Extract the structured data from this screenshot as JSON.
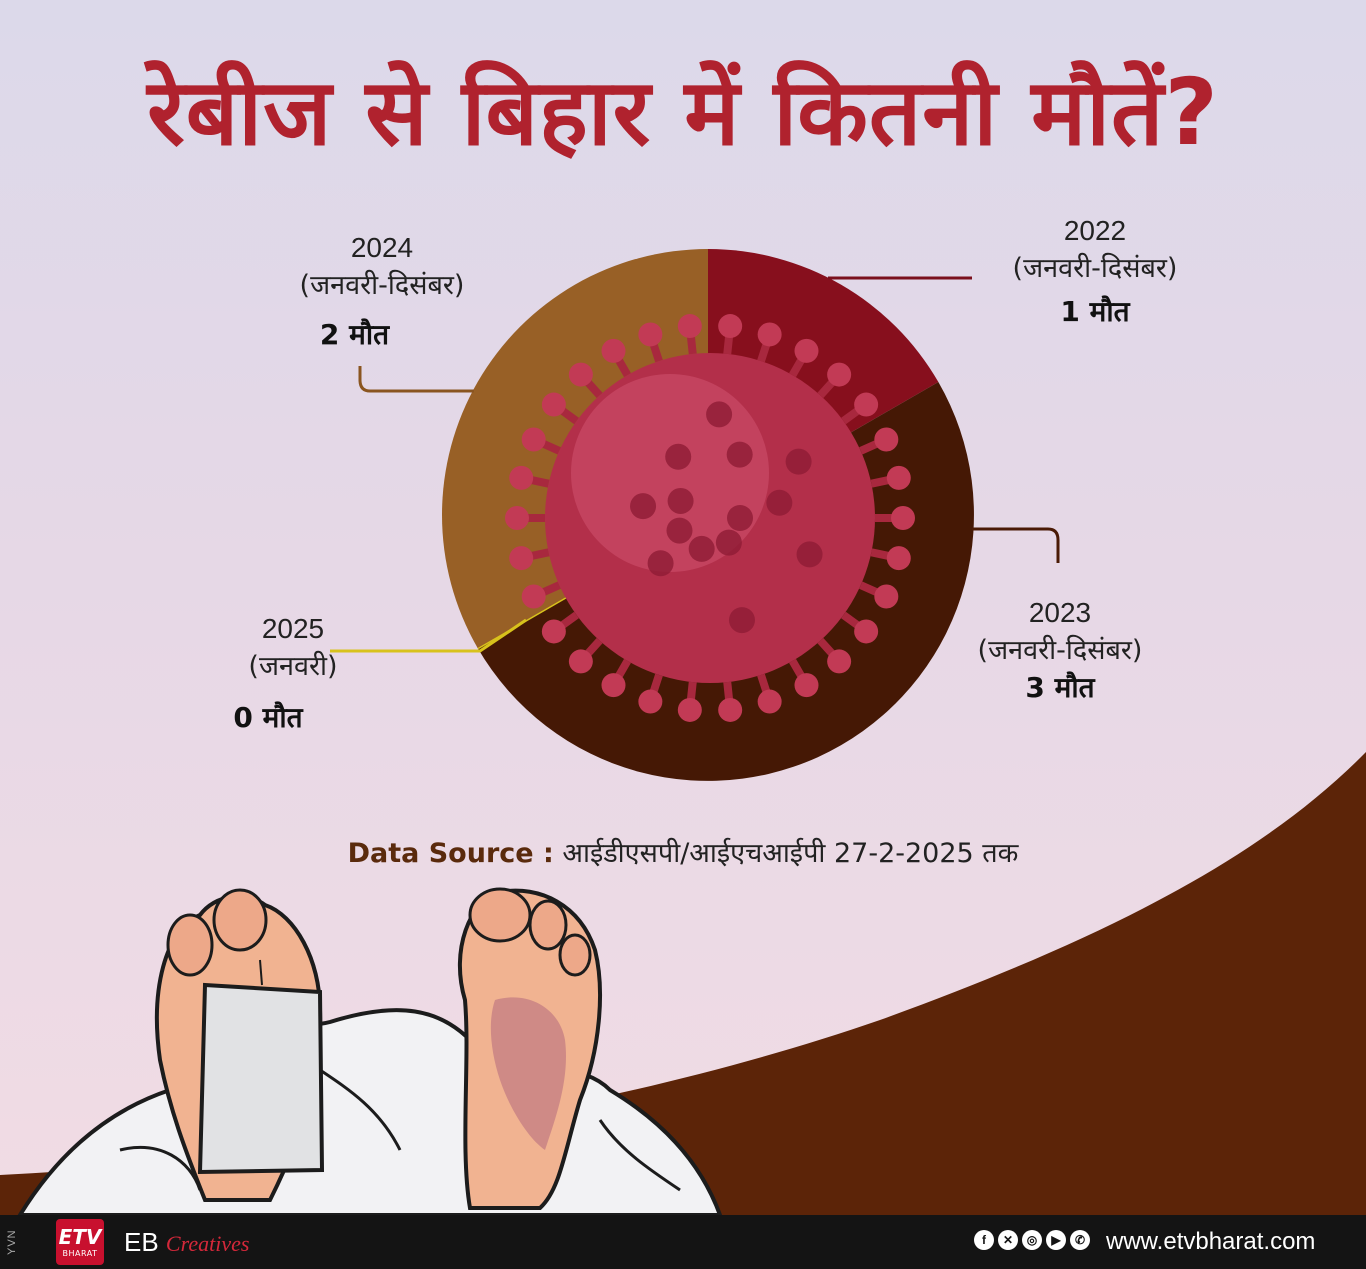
{
  "title": "रेबीज से बिहार में कितनी मौतें?",
  "chart_data": {
    "type": "pie",
    "slices": [
      {
        "year": "2022",
        "range": "(जनवरी-दिसंबर)",
        "value": 1,
        "value_label": "1 मौत",
        "color": "#870f1d"
      },
      {
        "year": "2023",
        "range": "(जनवरी-दिसंबर)",
        "value": 3,
        "value_label": "3 मौत",
        "color": "#451805"
      },
      {
        "year": "2025",
        "range": "(जनवरी)",
        "value": 0,
        "value_label": "0 मौत",
        "color": "#d8c21c"
      },
      {
        "year": "2024",
        "range": "(जनवरी-दिसंबर)",
        "value": 2,
        "value_label": "2 मौत",
        "color": "#986026"
      }
    ]
  },
  "source": {
    "key": "Data Source :",
    "text": "आईडीएसपी/आईएचआईपी 27-2-2025 तक"
  },
  "footer": {
    "vertical_text": "YVN",
    "logo_main": "ETV",
    "logo_sub": "BHARAT",
    "brand": "EB",
    "brand_script": "Creatives",
    "social_icons": [
      "facebook-icon",
      "x-icon",
      "instagram-icon",
      "youtube-icon",
      "whatsapp-icon"
    ],
    "website": "www.etvbharat.com"
  }
}
